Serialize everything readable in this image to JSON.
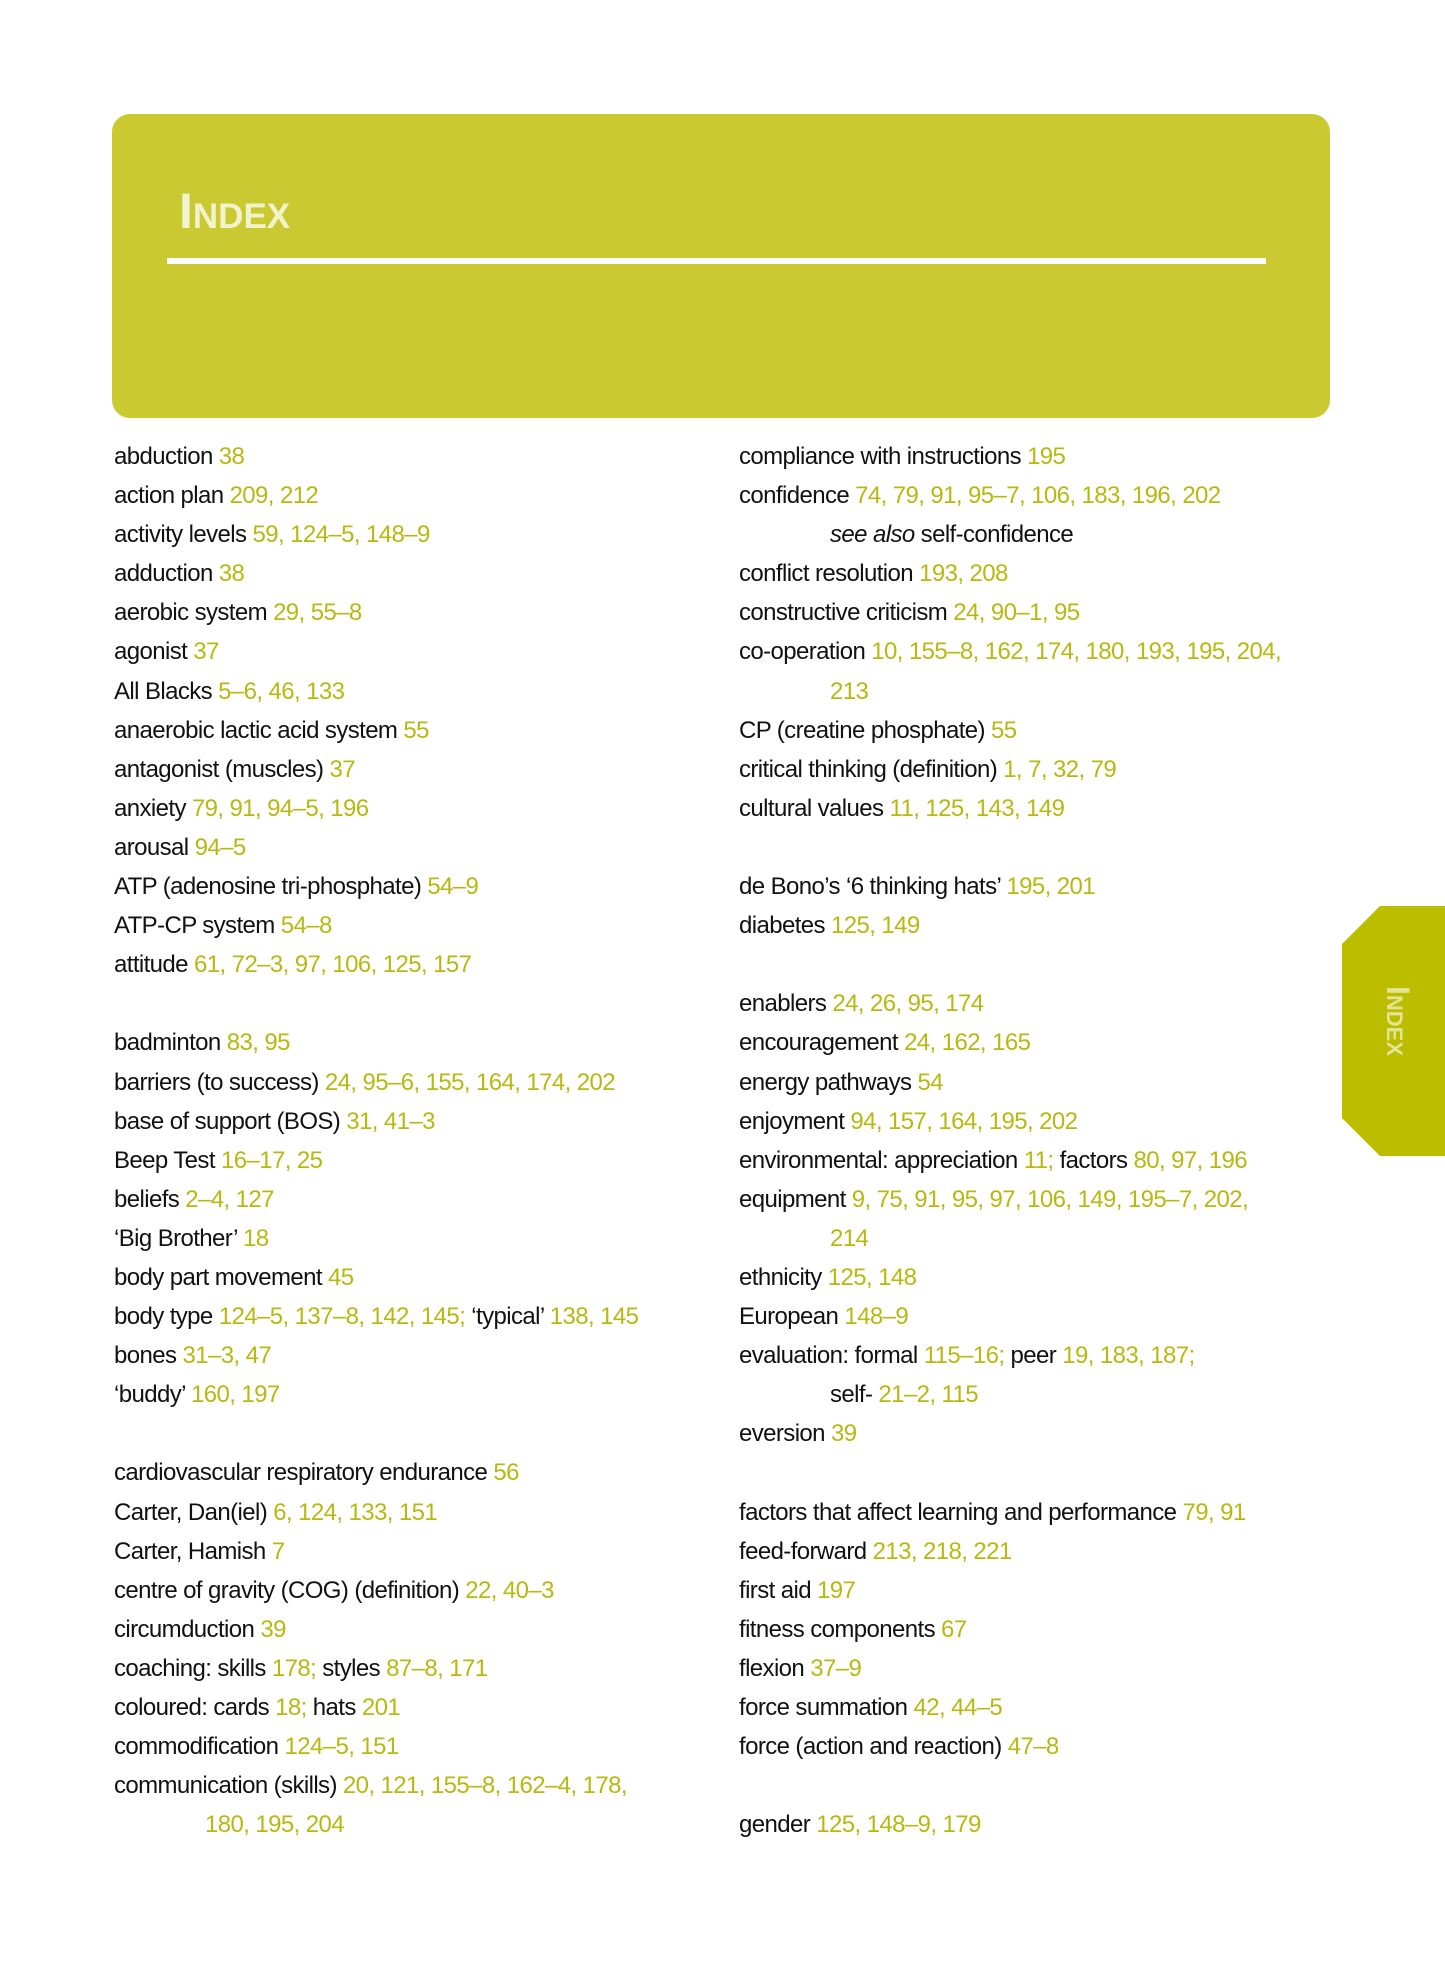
{
  "header": {
    "title": "Index"
  },
  "side_tab": {
    "label": "Index"
  },
  "colors": {
    "header_bg": "#cbc932",
    "tab_bg": "#bdbd00",
    "page_numbers": "#b8b810"
  },
  "columns": [
    [
      [
        [
          "abduction ",
          "t"
        ],
        [
          "38",
          "p"
        ]
      ],
      [
        [
          "action plan ",
          "t"
        ],
        [
          "209, 212",
          "p"
        ]
      ],
      [
        [
          "activity levels ",
          "t"
        ],
        [
          "59, 124–5, 148–9",
          "p"
        ]
      ],
      [
        [
          "adduction ",
          "t"
        ],
        [
          "38",
          "p"
        ]
      ],
      [
        [
          "aerobic system ",
          "t"
        ],
        [
          "29, 55–8",
          "p"
        ]
      ],
      [
        [
          "agonist ",
          "t"
        ],
        [
          "37",
          "p"
        ]
      ],
      [
        [
          "All Blacks ",
          "t"
        ],
        [
          "5–6, 46, 133",
          "p"
        ]
      ],
      [
        [
          "anaerobic lactic acid system ",
          "t"
        ],
        [
          "55",
          "p"
        ]
      ],
      [
        [
          "antagonist (muscles) ",
          "t"
        ],
        [
          "37",
          "p"
        ]
      ],
      [
        [
          "anxiety ",
          "t"
        ],
        [
          "79, 91, 94–5, 196",
          "p"
        ]
      ],
      [
        [
          "arousal ",
          "t"
        ],
        [
          "94–5",
          "p"
        ]
      ],
      [
        [
          "ATP (adenosine tri-phosphate) ",
          "t"
        ],
        [
          "54–9",
          "p"
        ]
      ],
      [
        [
          "ATP-CP system ",
          "t"
        ],
        [
          "54–8",
          "p"
        ]
      ],
      [
        [
          "attitude ",
          "t"
        ],
        [
          "61, 72–3, 97, 106, 125, 157",
          "p"
        ]
      ],
      [],
      [
        [
          "badminton ",
          "t"
        ],
        [
          "83, 95",
          "p"
        ]
      ],
      [
        [
          "barriers (to success) ",
          "t"
        ],
        [
          "24, 95–6, 155, 164, 174, 202",
          "p"
        ]
      ],
      [
        [
          "base of support (BOS) ",
          "t"
        ],
        [
          "31, 41–3",
          "p"
        ]
      ],
      [
        [
          "Beep Test ",
          "t"
        ],
        [
          "16–17, 25",
          "p"
        ]
      ],
      [
        [
          "beliefs ",
          "t"
        ],
        [
          "2–4, 127",
          "p"
        ]
      ],
      [
        [
          "‘Big Brother’ ",
          "t"
        ],
        [
          "18",
          "p"
        ]
      ],
      [
        [
          "body part movement ",
          "t"
        ],
        [
          "45",
          "p"
        ]
      ],
      [
        [
          "body type ",
          "t"
        ],
        [
          "124–5, 137–8, 142, 145; ",
          "p"
        ],
        [
          "‘typical’ ",
          "t"
        ],
        [
          "138, 145",
          "p"
        ]
      ],
      [
        [
          "bones ",
          "t"
        ],
        [
          "31–3, 47",
          "p"
        ]
      ],
      [
        [
          "‘buddy’ ",
          "t"
        ],
        [
          "160, 197",
          "p"
        ]
      ],
      [],
      [
        [
          "cardiovascular respiratory endurance ",
          "t"
        ],
        [
          "56",
          "p"
        ]
      ],
      [
        [
          "Carter, Dan(iel) ",
          "t"
        ],
        [
          "6, 124, 133, 151",
          "p"
        ]
      ],
      [
        [
          "Carter, Hamish ",
          "t"
        ],
        [
          "7",
          "p"
        ]
      ],
      [
        [
          "centre of gravity (COG) (definition) ",
          "t"
        ],
        [
          "22, 40–3",
          "p"
        ]
      ],
      [
        [
          "circumduction ",
          "t"
        ],
        [
          "39",
          "p"
        ]
      ],
      [
        [
          "coaching: skills ",
          "t"
        ],
        [
          "178; ",
          "p"
        ],
        [
          "styles ",
          "t"
        ],
        [
          "87–8, 171",
          "p"
        ]
      ],
      [
        [
          "coloured: cards ",
          "t"
        ],
        [
          "18; ",
          "p"
        ],
        [
          "hats ",
          "t"
        ],
        [
          "201",
          "p"
        ]
      ],
      [
        [
          "commodification ",
          "t"
        ],
        [
          "124–5, 151",
          "p"
        ]
      ],
      [
        [
          "communication (skills) ",
          "t"
        ],
        [
          "20, 121, 155–8, 162–4, 178,",
          "p"
        ],
        [
          "\n",
          "br"
        ],
        [
          "180, 195, 204",
          "p"
        ]
      ]
    ],
    [
      [
        [
          "compliance with instructions ",
          "t"
        ],
        [
          "195",
          "p"
        ]
      ],
      [
        [
          "confidence ",
          "t"
        ],
        [
          "74, 79, 91, 95–7, 106, 183, 196, 202",
          "p"
        ],
        [
          "\n",
          "br"
        ],
        [
          "see also ",
          "i"
        ],
        [
          "self-confidence",
          "t"
        ]
      ],
      [
        [
          "conflict resolution ",
          "t"
        ],
        [
          "193, 208",
          "p"
        ]
      ],
      [
        [
          "constructive criticism ",
          "t"
        ],
        [
          "24, 90–1, 95",
          "p"
        ]
      ],
      [
        [
          "co-operation ",
          "t"
        ],
        [
          "10, 155–8, 162, 174, 180, 193, 195, 204,",
          "p"
        ],
        [
          "\n",
          "br"
        ],
        [
          "213",
          "p"
        ]
      ],
      [
        [
          "CP (creatine phosphate) ",
          "t"
        ],
        [
          "55",
          "p"
        ]
      ],
      [
        [
          "critical thinking (definition) ",
          "t"
        ],
        [
          "1, 7, 32, 79",
          "p"
        ]
      ],
      [
        [
          "cultural values ",
          "t"
        ],
        [
          "11, 125, 143, 149",
          "p"
        ]
      ],
      [],
      [
        [
          "de Bono’s ‘6 thinking hats’ ",
          "t"
        ],
        [
          "195, 201",
          "p"
        ]
      ],
      [
        [
          "diabetes ",
          "t"
        ],
        [
          "125, 149",
          "p"
        ]
      ],
      [],
      [
        [
          "enablers ",
          "t"
        ],
        [
          "24, 26, 95, 174",
          "p"
        ]
      ],
      [
        [
          "encouragement ",
          "t"
        ],
        [
          "24, 162, 165",
          "p"
        ]
      ],
      [
        [
          "energy pathways ",
          "t"
        ],
        [
          "54",
          "p"
        ]
      ],
      [
        [
          "enjoyment ",
          "t"
        ],
        [
          "94, 157, 164, 195, 202",
          "p"
        ]
      ],
      [
        [
          "environmental: appreciation ",
          "t"
        ],
        [
          "11; ",
          "p"
        ],
        [
          "factors ",
          "t"
        ],
        [
          "80, 97, 196",
          "p"
        ]
      ],
      [
        [
          "equipment ",
          "t"
        ],
        [
          "9, 75, 91, 95, 97, 106, 149, 195–7, 202,",
          "p"
        ],
        [
          "\n",
          "br"
        ],
        [
          "214",
          "p"
        ]
      ],
      [
        [
          "ethnicity ",
          "t"
        ],
        [
          "125, 148",
          "p"
        ]
      ],
      [
        [
          "European ",
          "t"
        ],
        [
          "148–9",
          "p"
        ]
      ],
      [
        [
          "evaluation: formal ",
          "t"
        ],
        [
          "115–16; ",
          "p"
        ],
        [
          "peer ",
          "t"
        ],
        [
          "19, 183, 187;",
          "p"
        ],
        [
          "\n",
          "br"
        ],
        [
          "self- ",
          "t"
        ],
        [
          "21–2, 115",
          "p"
        ]
      ],
      [
        [
          "eversion ",
          "t"
        ],
        [
          "39",
          "p"
        ]
      ],
      [],
      [
        [
          "factors that affect learning and performance ",
          "t"
        ],
        [
          "79, 91",
          "p"
        ]
      ],
      [
        [
          "feed-forward ",
          "t"
        ],
        [
          "213, 218, 221",
          "p"
        ]
      ],
      [
        [
          "first aid ",
          "t"
        ],
        [
          "197",
          "p"
        ]
      ],
      [
        [
          "fitness components ",
          "t"
        ],
        [
          "67",
          "p"
        ]
      ],
      [
        [
          "flexion ",
          "t"
        ],
        [
          "37–9",
          "p"
        ]
      ],
      [
        [
          "force summation ",
          "t"
        ],
        [
          "42, 44–5",
          "p"
        ]
      ],
      [
        [
          "force (action and reaction) ",
          "t"
        ],
        [
          "47–8",
          "p"
        ]
      ],
      [],
      [
        [
          "gender ",
          "t"
        ],
        [
          "125, 148–9, 179",
          "p"
        ]
      ]
    ]
  ]
}
